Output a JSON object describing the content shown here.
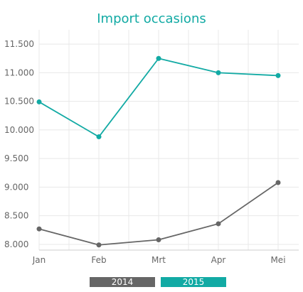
{
  "chart_data": {
    "type": "line",
    "title": "Import occasions",
    "xlabel": "",
    "ylabel": "",
    "categories": [
      "Jan",
      "Feb",
      "Mrt",
      "Apr",
      "Mei"
    ],
    "ylim": [
      7900,
      11700
    ],
    "yticks": [
      8000,
      8500,
      9000,
      9500,
      10000,
      10500,
      11000,
      11500
    ],
    "ytick_labels": [
      "8.000",
      "8.500",
      "9.000",
      "9.500",
      "10.000",
      "10.500",
      "11.000",
      "11.500"
    ],
    "grid": true,
    "legend_position": "bottom",
    "series": [
      {
        "name": "2014",
        "color": "#666666",
        "values": [
          8270,
          7990,
          8080,
          8360,
          9080
        ]
      },
      {
        "name": "2015",
        "color": "#12aaa4",
        "values": [
          10490,
          9880,
          11250,
          11000,
          10950
        ]
      }
    ]
  },
  "colors": {
    "title": "#12aaa4",
    "grid": "#e8e8e8",
    "axis": "#cccccc"
  }
}
